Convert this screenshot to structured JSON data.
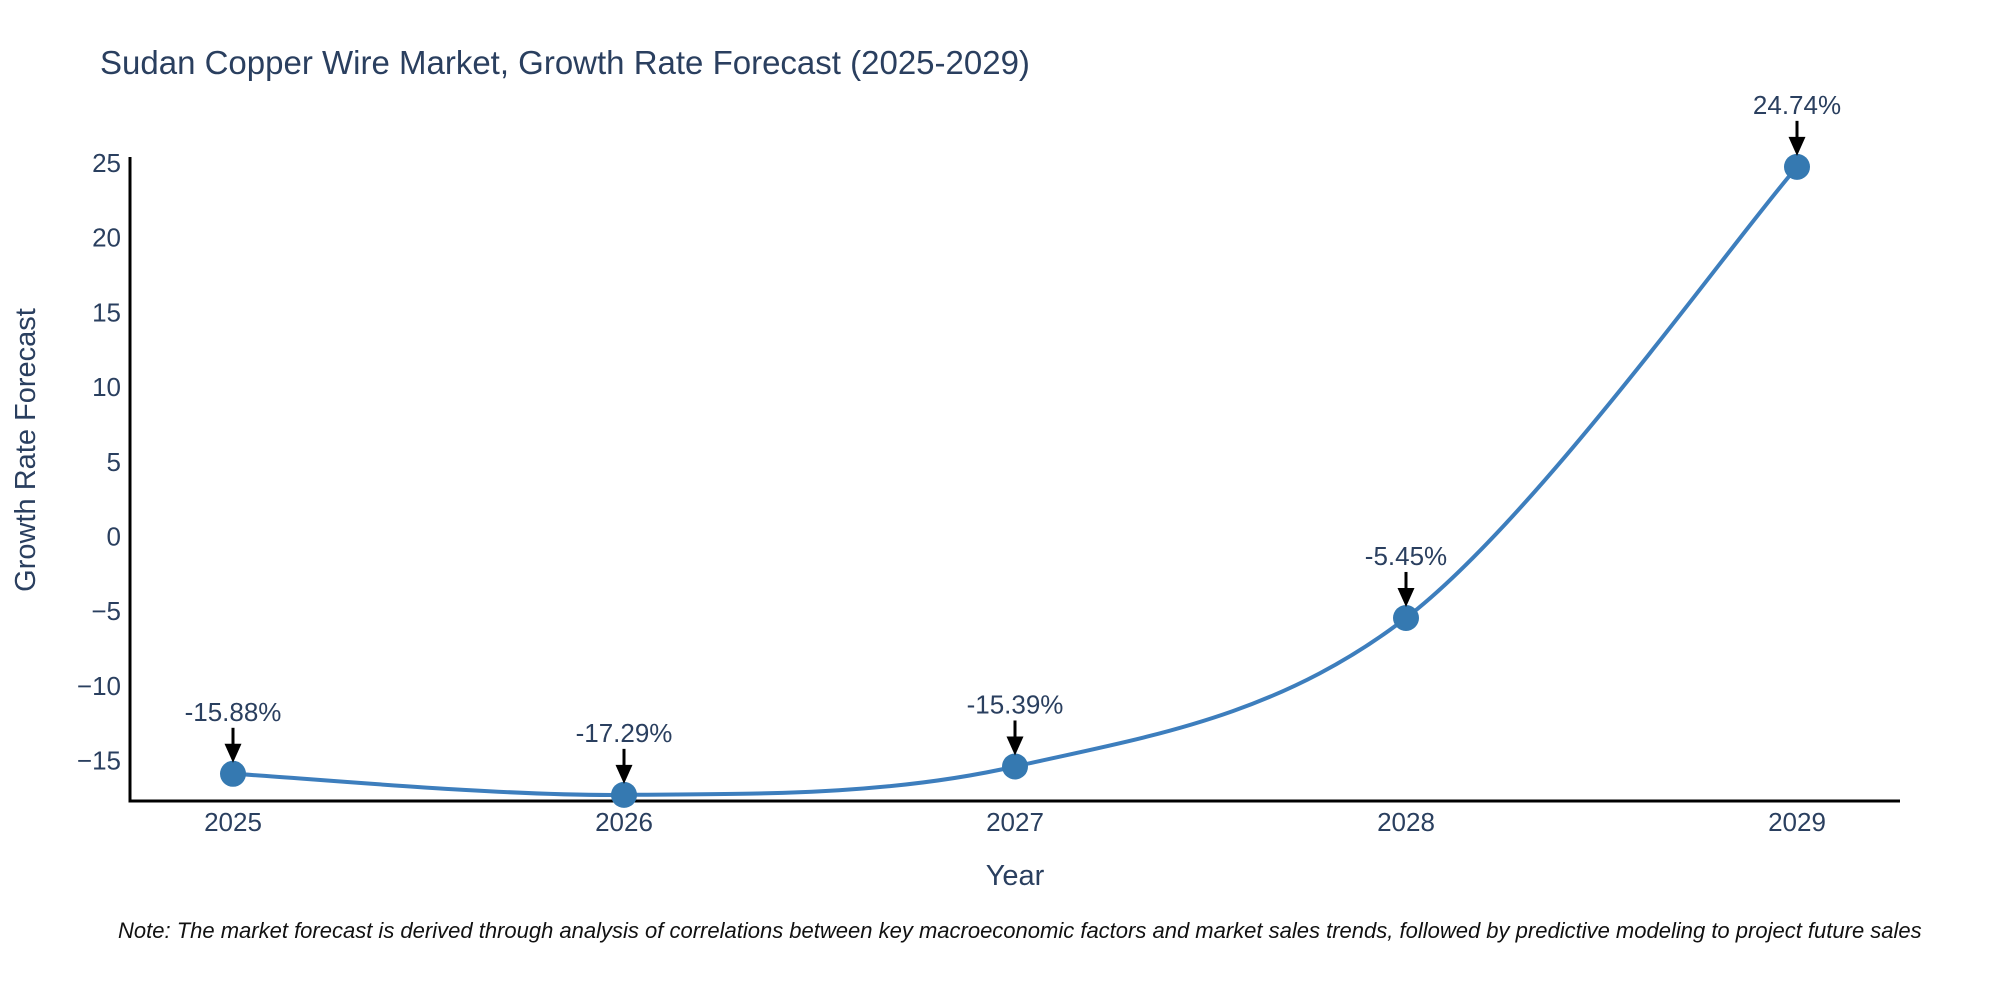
{
  "title": "Sudan Copper Wire Market, Growth Rate Forecast (2025-2029)",
  "note": "Note: The market forecast is derived through analysis of correlations between key macroeconomic factors and market sales trends, followed by predictive modeling to project future sales",
  "chart_data": {
    "type": "line",
    "title": "Sudan Copper Wire Market, Growth Rate Forecast (2025-2029)",
    "x": [
      2025,
      2026,
      2027,
      2028,
      2029
    ],
    "series": [
      {
        "name": "Growth Rate Forecast",
        "values": [
          -15.88,
          -17.29,
          -15.39,
          -5.45,
          24.74
        ]
      }
    ],
    "point_labels": [
      "-15.88%",
      "-17.29%",
      "-15.39%",
      "-5.45%",
      "24.74%"
    ],
    "xlabel": "Year",
    "ylabel": "Growth Rate Forecast",
    "xticks": [
      "2025",
      "2026",
      "2027",
      "2028",
      "2029"
    ],
    "yticks": [
      25,
      20,
      15,
      10,
      5,
      0,
      -5,
      -10,
      -15
    ],
    "ylim": [
      -17.7,
      25.4
    ],
    "line_shape": "spline",
    "grid": false,
    "legend": "none",
    "markers": true,
    "colors": {
      "line": "#3d7ebd",
      "marker": "#3579b1",
      "axis": "#000000",
      "text": "#2a3f5f",
      "arrow": "#000000",
      "note_text": "#111111"
    }
  }
}
